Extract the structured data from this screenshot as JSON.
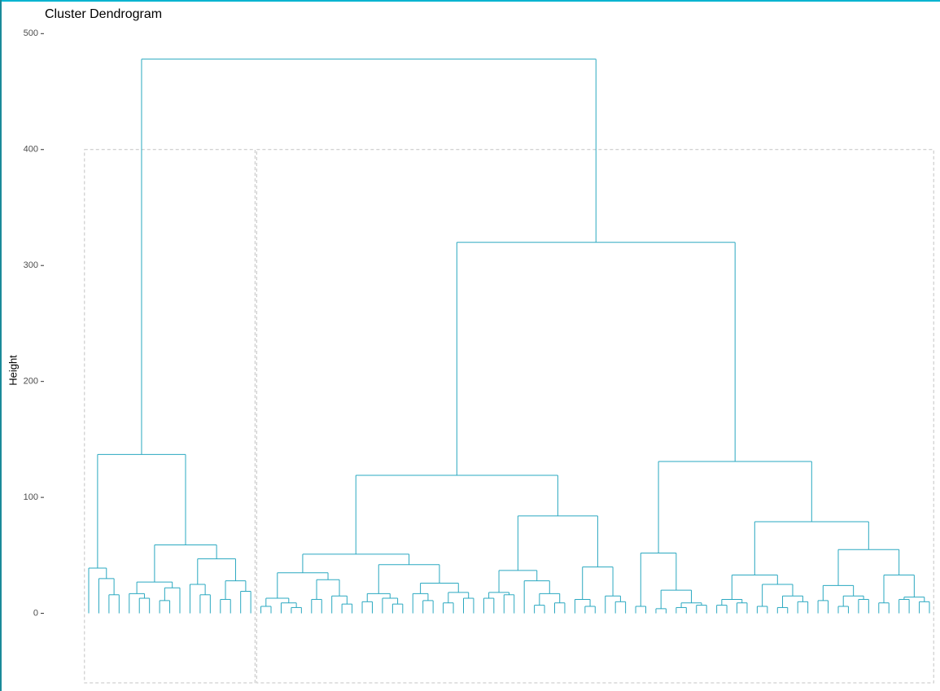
{
  "chart_data": {
    "type": "dendrogram",
    "title": "Cluster Dendrogram",
    "y_label": "Height",
    "color": "#2aa8c0",
    "ylim": [
      -67,
      529
    ],
    "yticks": [
      0,
      100,
      200,
      300,
      400,
      500
    ],
    "cluster_rect": {
      "top": 400,
      "bottom": -60,
      "color": "#c4c4c4"
    },
    "tree": {
      "height": 478,
      "children": [
        {
          "height": 137,
          "children": [
            {
              "height": 39,
              "children": [
                0,
                {
                  "height": 30,
                  "children": [
                    0,
                    {
                      "height": 16,
                      "children": [
                        0,
                        0
                      ]
                    }
                  ]
                }
              ]
            },
            {
              "height": 59,
              "children": [
                {
                  "height": 27,
                  "children": [
                    {
                      "height": 17,
                      "children": [
                        0,
                        {
                          "height": 13,
                          "children": [
                            0,
                            0
                          ]
                        }
                      ]
                    },
                    {
                      "height": 22,
                      "children": [
                        {
                          "height": 11,
                          "children": [
                            0,
                            0
                          ]
                        },
                        0
                      ]
                    }
                  ]
                },
                {
                  "height": 47,
                  "children": [
                    {
                      "height": 25,
                      "children": [
                        0,
                        {
                          "height": 16,
                          "children": [
                            0,
                            0
                          ]
                        }
                      ]
                    },
                    {
                      "height": 28,
                      "children": [
                        {
                          "height": 12,
                          "children": [
                            0,
                            0
                          ]
                        },
                        {
                          "height": 19,
                          "children": [
                            0,
                            0
                          ]
                        }
                      ]
                    }
                  ]
                }
              ]
            }
          ]
        },
        {
          "height": 320,
          "children": [
            {
              "height": 119,
              "children": [
                {
                  "height": 51,
                  "children": [
                    {
                      "height": 35,
                      "children": [
                        {
                          "height": 13,
                          "children": [
                            {
                              "height": 6,
                              "children": [
                                0,
                                0
                              ]
                            },
                            {
                              "height": 9,
                              "children": [
                                0,
                                {
                                  "height": 5,
                                  "children": [
                                    0,
                                    0
                                  ]
                                }
                              ]
                            }
                          ]
                        },
                        {
                          "height": 29,
                          "children": [
                            {
                              "height": 12,
                              "children": [
                                0,
                                0
                              ]
                            },
                            {
                              "height": 15,
                              "children": [
                                0,
                                {
                                  "height": 8,
                                  "children": [
                                    0,
                                    0
                                  ]
                                }
                              ]
                            }
                          ]
                        }
                      ]
                    },
                    {
                      "height": 42,
                      "children": [
                        {
                          "height": 17,
                          "children": [
                            {
                              "height": 10,
                              "children": [
                                0,
                                0
                              ]
                            },
                            {
                              "height": 13,
                              "children": [
                                0,
                                {
                                  "height": 8,
                                  "children": [
                                    0,
                                    0
                                  ]
                                }
                              ]
                            }
                          ]
                        },
                        {
                          "height": 26,
                          "children": [
                            {
                              "height": 17,
                              "children": [
                                0,
                                {
                                  "height": 11,
                                  "children": [
                                    0,
                                    0
                                  ]
                                }
                              ]
                            },
                            {
                              "height": 18,
                              "children": [
                                {
                                  "height": 9,
                                  "children": [
                                    0,
                                    0
                                  ]
                                },
                                {
                                  "height": 13,
                                  "children": [
                                    0,
                                    0
                                  ]
                                }
                              ]
                            }
                          ]
                        }
                      ]
                    }
                  ]
                },
                {
                  "height": 84,
                  "children": [
                    {
                      "height": 37,
                      "children": [
                        {
                          "height": 18,
                          "children": [
                            {
                              "height": 13,
                              "children": [
                                0,
                                0
                              ]
                            },
                            {
                              "height": 16,
                              "children": [
                                0,
                                0
                              ]
                            }
                          ]
                        },
                        {
                          "height": 28,
                          "children": [
                            0,
                            {
                              "height": 17,
                              "children": [
                                {
                                  "height": 7,
                                  "children": [
                                    0,
                                    0
                                  ]
                                },
                                {
                                  "height": 9,
                                  "children": [
                                    0,
                                    0
                                  ]
                                }
                              ]
                            }
                          ]
                        }
                      ]
                    },
                    {
                      "height": 40,
                      "children": [
                        {
                          "height": 12,
                          "children": [
                            0,
                            {
                              "height": 6,
                              "children": [
                                0,
                                0
                              ]
                            }
                          ]
                        },
                        {
                          "height": 15,
                          "children": [
                            0,
                            {
                              "height": 10,
                              "children": [
                                0,
                                0
                              ]
                            }
                          ]
                        }
                      ]
                    }
                  ]
                }
              ]
            },
            {
              "height": 131,
              "children": [
                {
                  "height": 52,
                  "children": [
                    {
                      "height": 6,
                      "children": [
                        0,
                        0
                      ]
                    },
                    {
                      "height": 20,
                      "children": [
                        {
                          "height": 4,
                          "children": [
                            0,
                            0
                          ]
                        },
                        {
                          "height": 9,
                          "children": [
                            {
                              "height": 5,
                              "children": [
                                0,
                                0
                              ]
                            },
                            {
                              "height": 7,
                              "children": [
                                0,
                                0
                              ]
                            }
                          ]
                        }
                      ]
                    }
                  ]
                },
                {
                  "height": 79,
                  "children": [
                    {
                      "height": 33,
                      "children": [
                        {
                          "height": 12,
                          "children": [
                            {
                              "height": 7,
                              "children": [
                                0,
                                0
                              ]
                            },
                            {
                              "height": 9,
                              "children": [
                                0,
                                0
                              ]
                            }
                          ]
                        },
                        {
                          "height": 25,
                          "children": [
                            {
                              "height": 6,
                              "children": [
                                0,
                                0
                              ]
                            },
                            {
                              "height": 15,
                              "children": [
                                {
                                  "height": 5,
                                  "children": [
                                    0,
                                    0
                                  ]
                                },
                                {
                                  "height": 10,
                                  "children": [
                                    0,
                                    0
                                  ]
                                }
                              ]
                            }
                          ]
                        }
                      ]
                    },
                    {
                      "height": 55,
                      "children": [
                        {
                          "height": 24,
                          "children": [
                            {
                              "height": 11,
                              "children": [
                                0,
                                0
                              ]
                            },
                            {
                              "height": 15,
                              "children": [
                                {
                                  "height": 6,
                                  "children": [
                                    0,
                                    0
                                  ]
                                },
                                {
                                  "height": 12,
                                  "children": [
                                    0,
                                    0
                                  ]
                                }
                              ]
                            }
                          ]
                        },
                        {
                          "height": 33,
                          "children": [
                            {
                              "height": 9,
                              "children": [
                                0,
                                0
                              ]
                            },
                            {
                              "height": 14,
                              "children": [
                                {
                                  "height": 12,
                                  "children": [
                                    0,
                                    0
                                  ]
                                },
                                {
                                  "height": 10,
                                  "children": [
                                    0,
                                    0
                                  ]
                                }
                              ]
                            }
                          ]
                        }
                      ]
                    }
                  ]
                }
              ]
            }
          ]
        }
      ]
    }
  }
}
